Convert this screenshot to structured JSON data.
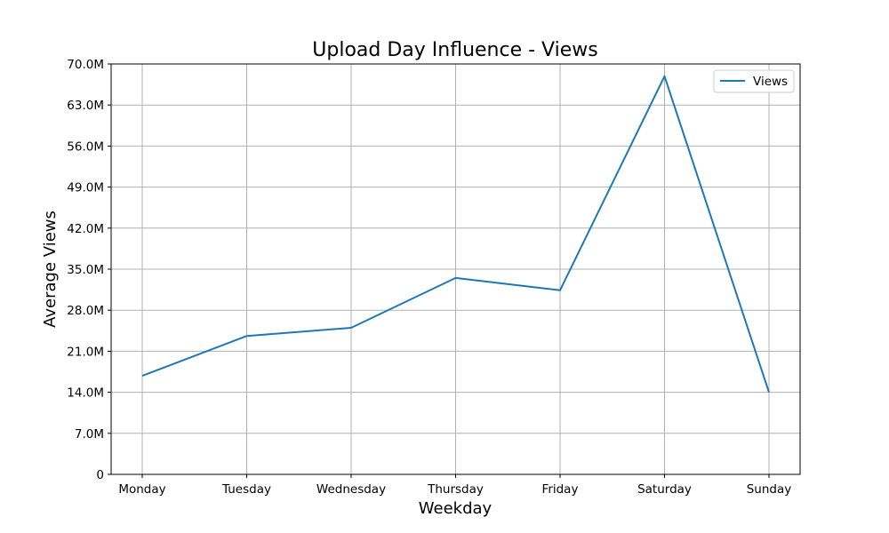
{
  "chart_data": {
    "type": "line",
    "title": "Upload Day Influence - Views",
    "xlabel": "Weekday",
    "ylabel": "Average Views",
    "categories": [
      "Monday",
      "Tuesday",
      "Wednesday",
      "Thursday",
      "Friday",
      "Saturday",
      "Sunday"
    ],
    "series": [
      {
        "name": "Views",
        "color": "#1f77b4",
        "values": [
          16800000,
          23600000,
          25000000,
          33500000,
          31400000,
          67900000,
          14000000
        ]
      }
    ],
    "ylim": [
      0,
      70000000
    ],
    "yticks": [
      0,
      7000000,
      14000000,
      21000000,
      28000000,
      35000000,
      42000000,
      49000000,
      56000000,
      63000000,
      70000000
    ],
    "ytick_labels": [
      "0",
      "7.0M",
      "14.0M",
      "21.0M",
      "28.0M",
      "35.0M",
      "42.0M",
      "49.0M",
      "56.0M",
      "63.0M",
      "70.0M"
    ],
    "grid": true,
    "legend_position": "top-right"
  }
}
